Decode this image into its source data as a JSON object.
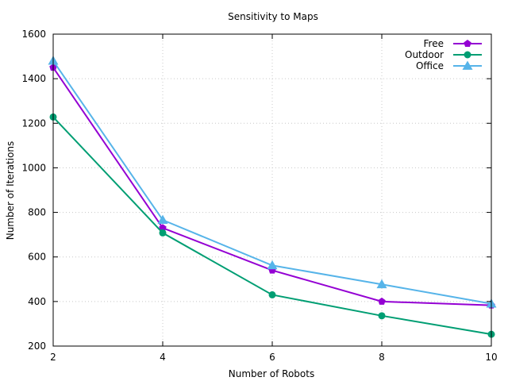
{
  "chart_data": {
    "type": "line",
    "title": "Sensitivity to Maps",
    "xlabel": "Number of Robots",
    "ylabel": "Number of Iterations",
    "xlim": [
      2,
      10
    ],
    "ylim": [
      200,
      1600
    ],
    "x_ticks": [
      2,
      4,
      6,
      8,
      10
    ],
    "y_ticks": [
      200,
      400,
      600,
      800,
      1000,
      1200,
      1400,
      1600
    ],
    "grid": true,
    "legend_position": "top-right",
    "x": [
      2,
      4,
      6,
      8,
      10
    ],
    "series": [
      {
        "name": "Free",
        "color": "#9400d3",
        "marker": "pentagon",
        "values": [
          1450,
          730,
          540,
          400,
          383
        ]
      },
      {
        "name": "Outdoor",
        "color": "#009e73",
        "marker": "circle",
        "values": [
          1228,
          708,
          430,
          336,
          253
        ]
      },
      {
        "name": "Office",
        "color": "#56b4e9",
        "marker": "triangle",
        "values": [
          1480,
          766,
          562,
          477,
          390
        ]
      }
    ]
  }
}
